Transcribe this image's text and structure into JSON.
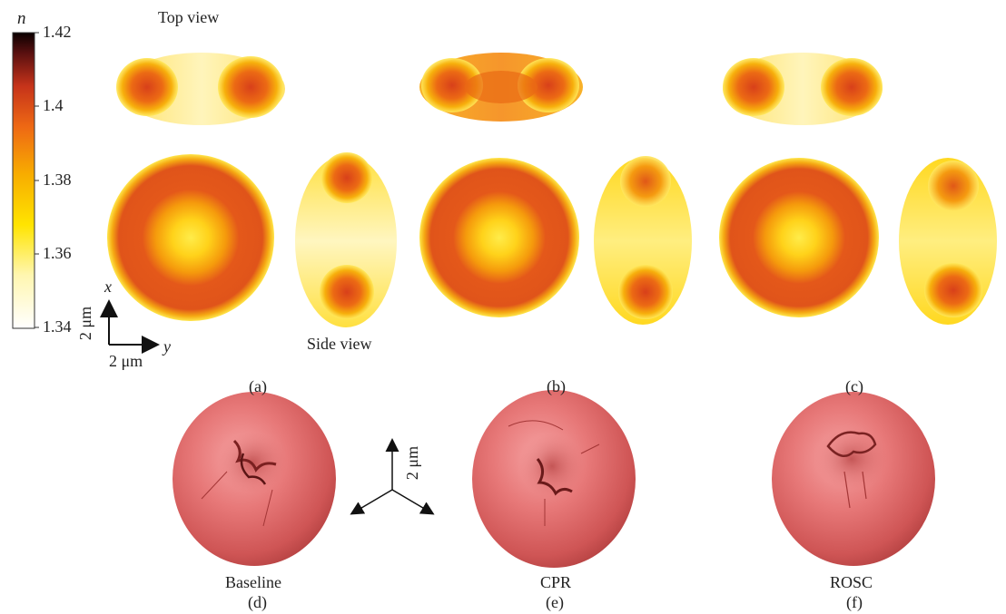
{
  "colorbar": {
    "symbol": "n",
    "ticks": [
      "1.42",
      "1.4",
      "1.38",
      "1.36",
      "1.34"
    ]
  },
  "annotations": {
    "top_view": "Top view",
    "side_view": "Side view"
  },
  "scalebar_2d": {
    "x_axis": "x",
    "y_axis": "y",
    "vertical_label": "2 μm",
    "horizontal_label": "2 μm"
  },
  "axes_3d": {
    "label": "2 μm"
  },
  "panels": [
    {
      "letter": "(a)",
      "caption": ""
    },
    {
      "letter": "(b)",
      "caption": ""
    },
    {
      "letter": "(c)",
      "caption": ""
    },
    {
      "letter": "(d)",
      "caption": "Baseline"
    },
    {
      "letter": "(e)",
      "caption": "CPR"
    },
    {
      "letter": "(f)",
      "caption": "ROSC"
    }
  ],
  "colors": {
    "colormap": [
      "#ffffff",
      "#fff7b0",
      "#ffe600",
      "#f9b000",
      "#ef6a12",
      "#c8301a",
      "#5a1010",
      "#000000"
    ],
    "cell_surface": "#e26a6a"
  }
}
